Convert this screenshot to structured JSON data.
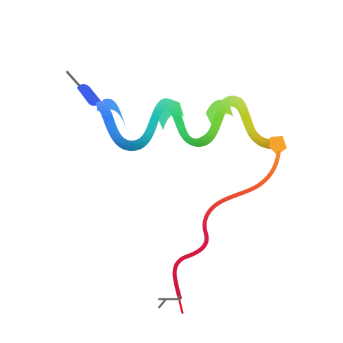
{
  "scene": {
    "subject": "protein-ribbon-structure",
    "background_color": "#ffffff"
  },
  "colors": {
    "n_terminus": "#3f5ee8",
    "blue": "#2f7ff2",
    "cyan": "#17b7c7",
    "green": "#36d24d",
    "lime": "#84cc2a",
    "yellow": "#e6c21c",
    "orange": "#f2a42e",
    "red_orange": "#f05a2c",
    "red": "#d91f46",
    "crimson": "#c9143f",
    "stick_gray": "#6b6b6b",
    "stick_red": "#e0142a"
  },
  "regions": [
    {
      "type": "helix",
      "color": "blue"
    },
    {
      "type": "helix",
      "color": "green"
    },
    {
      "type": "helix",
      "color": "yellow"
    },
    {
      "type": "coil",
      "color": "red"
    }
  ]
}
